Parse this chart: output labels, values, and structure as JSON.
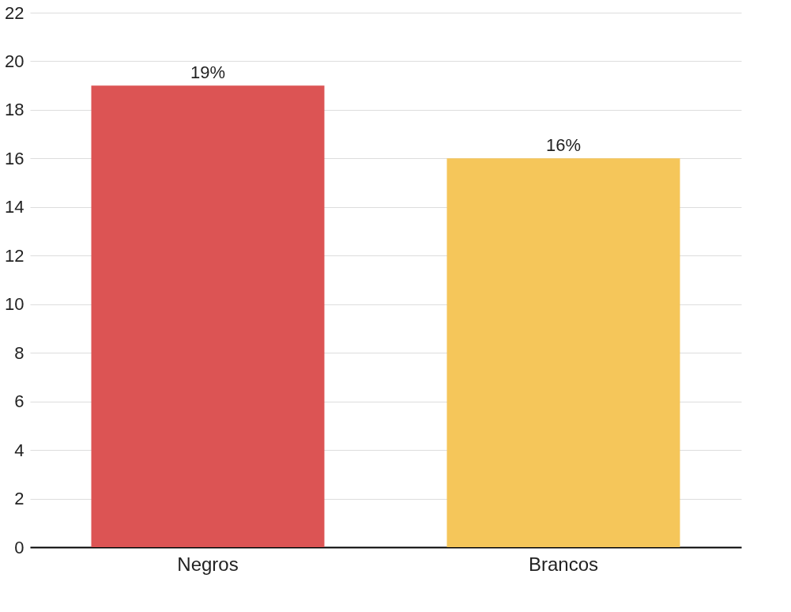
{
  "chart_data": {
    "type": "bar",
    "categories": [
      "Negros",
      "Brancos"
    ],
    "values": [
      19,
      16
    ],
    "colors": [
      "#dc5454",
      "#f5c65a"
    ],
    "value_labels": [
      "19%",
      "16%"
    ],
    "ylim": [
      0,
      22
    ],
    "yticks": [
      0,
      2,
      4,
      6,
      8,
      10,
      12,
      14,
      16,
      18,
      20,
      22
    ],
    "grid": "y"
  }
}
